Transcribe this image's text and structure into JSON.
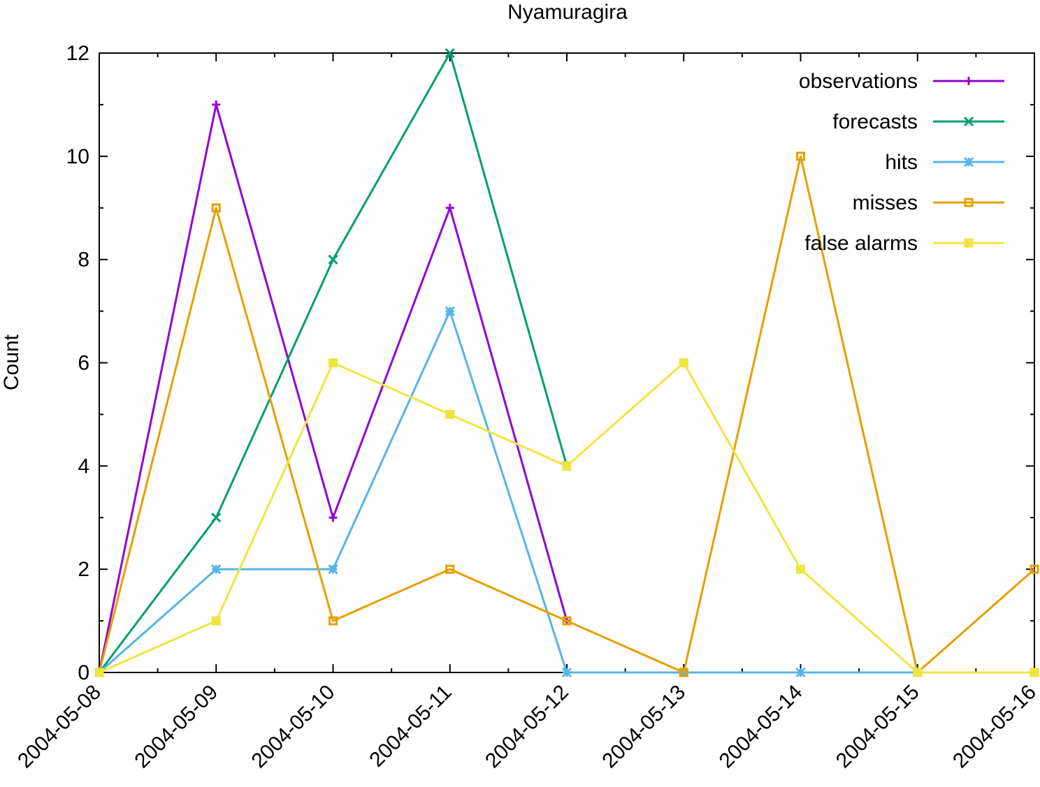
{
  "chart_data": {
    "type": "line",
    "title": "Nyamuragira",
    "xlabel": "",
    "ylabel": "Count",
    "ylim": [
      0,
      12
    ],
    "yticks": [
      0,
      2,
      4,
      6,
      8,
      10,
      12
    ],
    "categories": [
      "2004-05-08",
      "2004-05-09",
      "2004-05-10",
      "2004-05-11",
      "2004-05-12",
      "2004-05-13",
      "2004-05-14",
      "2004-05-15",
      "2004-05-16"
    ],
    "legend_position": "top-right",
    "grid": false,
    "series": [
      {
        "name": "observations",
        "color": "#9400d3",
        "marker": "plus",
        "values": [
          0,
          11,
          3,
          9,
          1,
          null,
          null,
          null,
          null
        ]
      },
      {
        "name": "forecasts",
        "color": "#009e73",
        "marker": "cross",
        "values": [
          0,
          3,
          8,
          12,
          4,
          null,
          null,
          null,
          null
        ]
      },
      {
        "name": "hits",
        "color": "#56b4e9",
        "marker": "star",
        "values": [
          0,
          2,
          2,
          7,
          0,
          0,
          0,
          0,
          0
        ]
      },
      {
        "name": "misses",
        "color": "#e69f00",
        "marker": "open-square",
        "values": [
          0,
          9,
          1,
          2,
          1,
          0,
          10,
          0,
          2
        ]
      },
      {
        "name": "false alarms",
        "color": "#f0e442",
        "marker": "filled-square",
        "values": [
          0,
          1,
          6,
          5,
          4,
          6,
          2,
          0,
          0
        ]
      }
    ]
  }
}
